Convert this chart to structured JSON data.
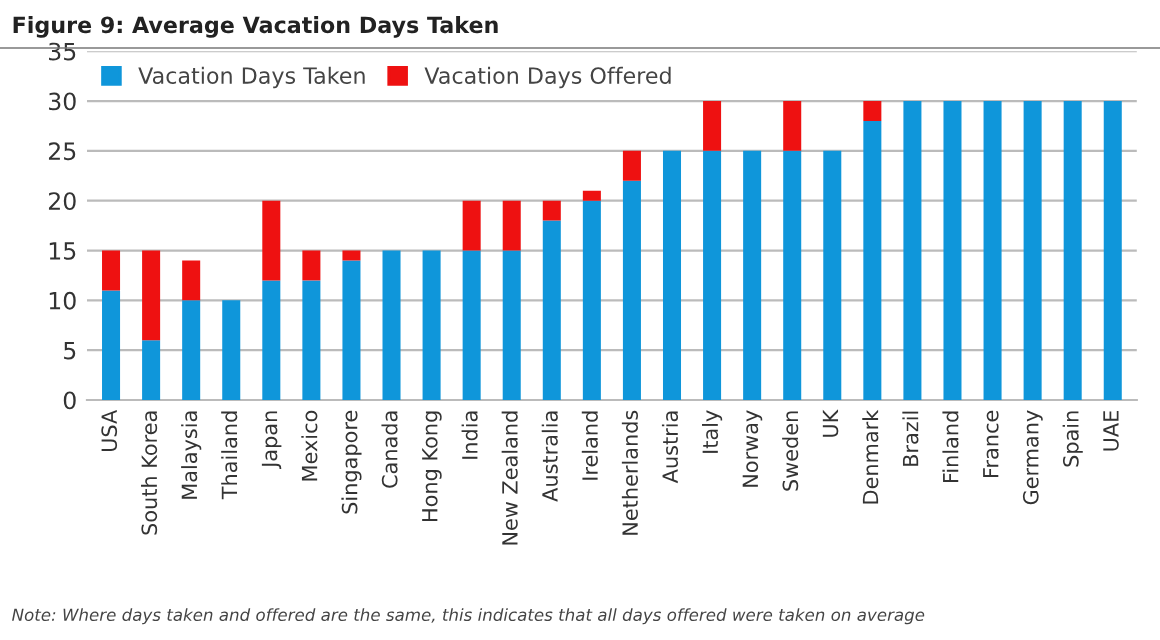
{
  "chart_data": {
    "type": "bar",
    "title": "Figure 9: Average Vacation Days Taken",
    "stacked": true,
    "categories": [
      "USA",
      "South Korea",
      "Malaysia",
      "Thailand",
      "Japan",
      "Mexico",
      "Singapore",
      "Canada",
      "Hong Kong",
      "India",
      "New Zealand",
      "Australia",
      "Ireland",
      "Netherlands",
      "Austria",
      "Italy",
      "Norway",
      "Sweden",
      "UK",
      "Denmark",
      "Brazil",
      "Finland",
      "France",
      "Germany",
      "Spain",
      "UAE"
    ],
    "series": [
      {
        "name": "Vacation Days Taken",
        "color": "#0f96da",
        "values": [
          11,
          6,
          10,
          10,
          12,
          12,
          14,
          15,
          15,
          15,
          15,
          18,
          20,
          22,
          25,
          25,
          25,
          25,
          25,
          28,
          30,
          30,
          30,
          30,
          30,
          30
        ]
      },
      {
        "name": "Vacation Days Offered",
        "color": "#ee1111",
        "values": [
          4,
          9,
          4,
          0,
          8,
          3,
          1,
          0,
          0,
          5,
          5,
          2,
          1,
          3,
          0,
          5,
          0,
          5,
          0,
          2,
          0,
          0,
          0,
          0,
          0,
          0
        ]
      }
    ],
    "ylim": [
      0,
      35
    ],
    "yticks": [
      0,
      5,
      10,
      15,
      20,
      25,
      30,
      35
    ],
    "grid": "y",
    "legend": "top left",
    "annotations": [
      "Note: Where days taken and offered are the same, this indicates that all days offered were taken on average"
    ]
  }
}
